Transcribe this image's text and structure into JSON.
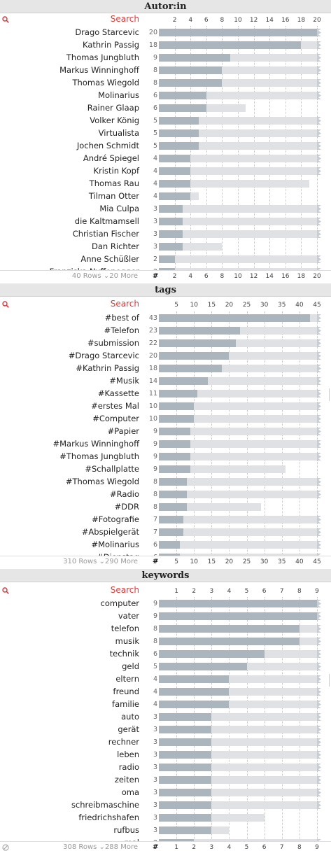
{
  "panels": [
    {
      "title": "Autor:in",
      "search_label": "Search",
      "footer": "40 Rows ⌄20 More",
      "max": 20,
      "ticks": [
        "2",
        "4",
        "6",
        "8",
        "10",
        "12",
        "14",
        "16",
        "18",
        "20"
      ],
      "show_hash": true,
      "show_none_icon": false,
      "items": [
        {
          "label": "Drago Starcevic",
          "count": "20",
          "value": 20,
          "total": 20
        },
        {
          "label": "Kathrin Passig",
          "count": "18",
          "value": 18,
          "total": 20
        },
        {
          "label": "Thomas Jungbluth",
          "count": "9",
          "value": 9,
          "total": 20
        },
        {
          "label": "Markus Winninghoff",
          "count": "8",
          "value": 8,
          "total": 20
        },
        {
          "label": "Thomas Wiegold",
          "count": "8",
          "value": 8,
          "total": 20
        },
        {
          "label": "Molinarius",
          "count": "6",
          "value": 6,
          "total": 20
        },
        {
          "label": "Rainer Glaap",
          "count": "6",
          "value": 6,
          "total": 11
        },
        {
          "label": "Volker König",
          "count": "5",
          "value": 5,
          "total": 20
        },
        {
          "label": "Virtualista",
          "count": "5",
          "value": 5,
          "total": 20
        },
        {
          "label": "Jochen Schmidt",
          "count": "5",
          "value": 5,
          "total": 20
        },
        {
          "label": "André Spiegel",
          "count": "4",
          "value": 4,
          "total": 20
        },
        {
          "label": "Kristin Kopf",
          "count": "4",
          "value": 4,
          "total": 20
        },
        {
          "label": "Thomas Rau",
          "count": "4",
          "value": 4,
          "total": 19
        },
        {
          "label": "Tilman Otter",
          "count": "4",
          "value": 4,
          "total": 5
        },
        {
          "label": "Mia Culpa",
          "count": "3",
          "value": 3,
          "total": 20
        },
        {
          "label": "die Kaltmamsell",
          "count": "3",
          "value": 3,
          "total": 20
        },
        {
          "label": "Christian Fischer",
          "count": "3",
          "value": 3,
          "total": 20
        },
        {
          "label": "Dan Richter",
          "count": "3",
          "value": 3,
          "total": 8
        },
        {
          "label": "Anne Schüßler",
          "count": "2",
          "value": 2,
          "total": 20
        },
        {
          "label": "Franziska Nyffenegger",
          "count": "2",
          "value": 2,
          "total": 20
        }
      ]
    },
    {
      "title": "tags",
      "search_label": "Search",
      "footer": "310 Rows ⌄290 More",
      "max": 45,
      "ticks": [
        "5",
        "10",
        "15",
        "20",
        "25",
        "30",
        "35",
        "40",
        "45"
      ],
      "show_hash": true,
      "show_none_icon": false,
      "items": [
        {
          "label": "#best of",
          "count": "43",
          "value": 43,
          "total": 45
        },
        {
          "label": "#Telefon",
          "count": "23",
          "value": 23,
          "total": 45
        },
        {
          "label": "#submission",
          "count": "22",
          "value": 22,
          "total": 45
        },
        {
          "label": "#Drago Starcevic",
          "count": "20",
          "value": 20,
          "total": 45
        },
        {
          "label": "#Kathrin Passig",
          "count": "18",
          "value": 18,
          "total": 45
        },
        {
          "label": "#Musik",
          "count": "14",
          "value": 14,
          "total": 45
        },
        {
          "label": "#Kassette",
          "count": "11",
          "value": 11,
          "total": 45
        },
        {
          "label": "#erstes Mal",
          "count": "10",
          "value": 10,
          "total": 45
        },
        {
          "label": "#Computer",
          "count": "10",
          "value": 10,
          "total": 45
        },
        {
          "label": "#Papier",
          "count": "9",
          "value": 9,
          "total": 45
        },
        {
          "label": "#Markus Winninghoff",
          "count": "9",
          "value": 9,
          "total": 45
        },
        {
          "label": "#Thomas Jungbluth",
          "count": "9",
          "value": 9,
          "total": 45
        },
        {
          "label": "#Schallplatte",
          "count": "9",
          "value": 9,
          "total": 36
        },
        {
          "label": "#Thomas Wiegold",
          "count": "8",
          "value": 8,
          "total": 45
        },
        {
          "label": "#Radio",
          "count": "8",
          "value": 8,
          "total": 45
        },
        {
          "label": "#DDR",
          "count": "8",
          "value": 8,
          "total": 29
        },
        {
          "label": "#Fotografie",
          "count": "7",
          "value": 7,
          "total": 45
        },
        {
          "label": "#Abspielgerät",
          "count": "7",
          "value": 7,
          "total": 45
        },
        {
          "label": "#Molinarius",
          "count": "6",
          "value": 6,
          "total": 45
        },
        {
          "label": "#Dienstag",
          "count": "6",
          "value": 6,
          "total": 45
        }
      ]
    },
    {
      "title": "keywords",
      "search_label": "Search",
      "footer": "308 Rows ⌄288 More",
      "max": 9,
      "ticks": [
        "1",
        "2",
        "3",
        "4",
        "5",
        "6",
        "7",
        "8",
        "9"
      ],
      "show_hash": true,
      "show_none_icon": true,
      "items": [
        {
          "label": "computer",
          "count": "9",
          "value": 9,
          "total": 9
        },
        {
          "label": "vater",
          "count": "9",
          "value": 9,
          "total": 9
        },
        {
          "label": "telefon",
          "count": "8",
          "value": 8,
          "total": 9
        },
        {
          "label": "musik",
          "count": "8",
          "value": 8,
          "total": 9
        },
        {
          "label": "technik",
          "count": "6",
          "value": 6,
          "total": 9
        },
        {
          "label": "geld",
          "count": "5",
          "value": 5,
          "total": 9
        },
        {
          "label": "eltern",
          "count": "4",
          "value": 4,
          "total": 9
        },
        {
          "label": "freund",
          "count": "4",
          "value": 4,
          "total": 9
        },
        {
          "label": "familie",
          "count": "4",
          "value": 4,
          "total": 9
        },
        {
          "label": "auto",
          "count": "3",
          "value": 3,
          "total": 9
        },
        {
          "label": "gerät",
          "count": "3",
          "value": 3,
          "total": 9
        },
        {
          "label": "rechner",
          "count": "3",
          "value": 3,
          "total": 9
        },
        {
          "label": "leben",
          "count": "3",
          "value": 3,
          "total": 9
        },
        {
          "label": "radio",
          "count": "3",
          "value": 3,
          "total": 9
        },
        {
          "label": "zeiten",
          "count": "3",
          "value": 3,
          "total": 9
        },
        {
          "label": "oma",
          "count": "3",
          "value": 3,
          "total": 9
        },
        {
          "label": "schreibmaschine",
          "count": "3",
          "value": 3,
          "total": 9
        },
        {
          "label": "friedrichshafen",
          "count": "3",
          "value": 3,
          "total": 6
        },
        {
          "label": "rufbus",
          "count": "3",
          "value": 3,
          "total": 4
        },
        {
          "label": "mal",
          "count": "2",
          "value": 2,
          "total": 9
        }
      ]
    }
  ],
  "colors": {
    "header_bg": "#e6e6e6",
    "accent": "#d33c3c",
    "bar_fill": "#aab5bd",
    "bar_track": "#dfe1e5",
    "zigzag": "#c9ced4"
  },
  "icons": {
    "search": "search-icon",
    "none": "circle-slash-icon",
    "truncation": "zigzag-icon"
  }
}
